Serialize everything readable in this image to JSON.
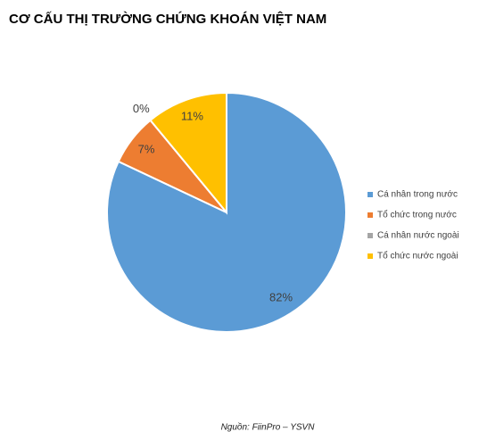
{
  "chart_data": {
    "type": "pie",
    "title": "CƠ CẤU THỊ TRƯỜNG CHỨNG KHOÁN VIỆT NAM",
    "categories": [
      "Cá nhân trong nước",
      "Tổ chức trong nước",
      "Cá nhân nước ngoài",
      "Tổ chức nước ngoài"
    ],
    "values": [
      82,
      7,
      0,
      11
    ],
    "value_labels": [
      "82%",
      "7%",
      "0%",
      "11%"
    ],
    "colors": [
      "#5b9bd5",
      "#ed7d31",
      "#a5a5a5",
      "#ffc000"
    ],
    "legend": "right",
    "source": "Nguồn: FiinPro – YSVN"
  }
}
